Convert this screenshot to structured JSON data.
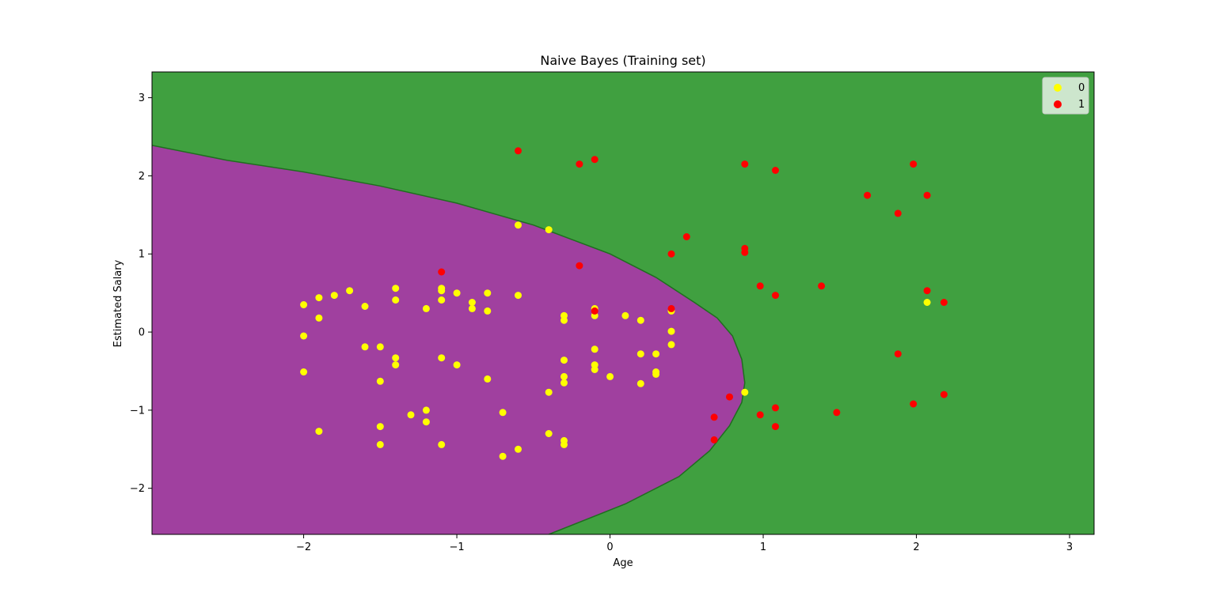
{
  "chart_data": {
    "type": "scatter",
    "title": "Naive Bayes (Training set)",
    "xlabel": "Age",
    "ylabel": "Estimated Salary",
    "xlim": [
      -2.99,
      3.16
    ],
    "ylim": [
      -2.59,
      3.33
    ],
    "xticks": [
      -2,
      -1,
      0,
      1,
      2,
      3
    ],
    "yticks": [
      -2,
      -1,
      0,
      1,
      2,
      3
    ],
    "xtick_labels": [
      "−2",
      "−1",
      "0",
      "1",
      "2",
      "3"
    ],
    "ytick_labels": [
      "−2",
      "−1",
      "0",
      "1",
      "2",
      "3"
    ],
    "legend_position": "top-right",
    "grid": false,
    "background_regions": [
      {
        "name": "0",
        "color": "#a0409f"
      },
      {
        "name": "1",
        "color": "#40a040"
      }
    ],
    "decision_boundary": [
      [
        -2.99,
        2.39
      ],
      [
        -2.5,
        2.2
      ],
      [
        -2.0,
        2.05
      ],
      [
        -1.5,
        1.87
      ],
      [
        -1.0,
        1.65
      ],
      [
        -0.5,
        1.37
      ],
      [
        0.0,
        1.0
      ],
      [
        0.3,
        0.7
      ],
      [
        0.55,
        0.38
      ],
      [
        0.7,
        0.18
      ],
      [
        0.8,
        -0.05
      ],
      [
        0.86,
        -0.35
      ],
      [
        0.88,
        -0.65
      ],
      [
        0.86,
        -0.9
      ],
      [
        0.78,
        -1.2
      ],
      [
        0.65,
        -1.52
      ],
      [
        0.45,
        -1.85
      ],
      [
        0.1,
        -2.2
      ],
      [
        -0.4,
        -2.59
      ]
    ],
    "series": [
      {
        "name": "0",
        "color": "#ffff00",
        "points": [
          [
            -2.0,
            0.35
          ],
          [
            -1.9,
            0.44
          ],
          [
            -1.8,
            0.47
          ],
          [
            -1.7,
            0.53
          ],
          [
            -1.9,
            0.18
          ],
          [
            -2.0,
            -0.05
          ],
          [
            -1.6,
            0.33
          ],
          [
            -1.6,
            -0.19
          ],
          [
            -1.5,
            -0.19
          ],
          [
            -1.4,
            0.56
          ],
          [
            -1.4,
            0.41
          ],
          [
            -1.4,
            -0.33
          ],
          [
            -1.4,
            -0.42
          ],
          [
            -1.2,
            0.3
          ],
          [
            -1.1,
            0.56
          ],
          [
            -1.1,
            0.53
          ],
          [
            -1.1,
            0.41
          ],
          [
            -1.0,
            0.5
          ],
          [
            -0.9,
            0.38
          ],
          [
            -0.9,
            0.3
          ],
          [
            -0.8,
            0.5
          ],
          [
            -0.8,
            0.27
          ],
          [
            -0.6,
            0.47
          ],
          [
            -2.0,
            -0.51
          ],
          [
            -1.5,
            -0.63
          ],
          [
            -1.1,
            -0.33
          ],
          [
            -1.0,
            -0.42
          ],
          [
            -0.8,
            -0.6
          ],
          [
            -1.3,
            -1.06
          ],
          [
            -1.2,
            -1.0
          ],
          [
            -1.2,
            -1.15
          ],
          [
            -1.5,
            -1.21
          ],
          [
            -1.9,
            -1.27
          ],
          [
            -1.5,
            -1.44
          ],
          [
            -1.1,
            -1.44
          ],
          [
            -0.7,
            -1.03
          ],
          [
            -0.7,
            -1.59
          ],
          [
            -0.6,
            -1.5
          ],
          [
            -0.4,
            -1.3
          ],
          [
            -0.3,
            -1.39
          ],
          [
            -0.3,
            -1.44
          ],
          [
            -0.4,
            -0.77
          ],
          [
            -0.3,
            -0.57
          ],
          [
            -0.3,
            -0.65
          ],
          [
            -0.3,
            -0.36
          ],
          [
            -0.3,
            0.21
          ],
          [
            -0.3,
            0.15
          ],
          [
            -0.1,
            0.3
          ],
          [
            -0.1,
            0.21
          ],
          [
            -0.1,
            -0.22
          ],
          [
            -0.1,
            -0.42
          ],
          [
            -0.1,
            -0.48
          ],
          [
            0.0,
            -0.57
          ],
          [
            0.1,
            0.21
          ],
          [
            0.2,
            0.15
          ],
          [
            0.2,
            -0.28
          ],
          [
            0.2,
            -0.66
          ],
          [
            0.3,
            -0.28
          ],
          [
            0.3,
            -0.51
          ],
          [
            0.3,
            -0.54
          ],
          [
            0.4,
            0.01
          ],
          [
            0.4,
            -0.16
          ],
          [
            0.4,
            0.27
          ],
          [
            -0.6,
            1.37
          ],
          [
            -0.4,
            1.31
          ],
          [
            0.88,
            -0.77
          ],
          [
            2.07,
            0.38
          ]
        ]
      },
      {
        "name": "1",
        "color": "#ff0000",
        "points": [
          [
            -0.6,
            2.32
          ],
          [
            -0.2,
            2.15
          ],
          [
            -0.1,
            2.21
          ],
          [
            0.88,
            2.15
          ],
          [
            1.08,
            2.07
          ],
          [
            1.98,
            2.15
          ],
          [
            1.68,
            1.75
          ],
          [
            2.07,
            1.75
          ],
          [
            1.88,
            1.52
          ],
          [
            0.5,
            1.22
          ],
          [
            0.4,
            1.0
          ],
          [
            0.88,
            1.07
          ],
          [
            0.88,
            1.02
          ],
          [
            -1.1,
            0.77
          ],
          [
            -0.2,
            0.85
          ],
          [
            0.98,
            0.59
          ],
          [
            1.38,
            0.59
          ],
          [
            1.08,
            0.47
          ],
          [
            2.07,
            0.53
          ],
          [
            2.18,
            0.38
          ],
          [
            -0.1,
            0.27
          ],
          [
            0.4,
            0.3
          ],
          [
            1.88,
            -0.28
          ],
          [
            0.78,
            -0.83
          ],
          [
            2.18,
            -0.8
          ],
          [
            1.98,
            -0.92
          ],
          [
            1.08,
            -0.97
          ],
          [
            0.98,
            -1.06
          ],
          [
            1.48,
            -1.03
          ],
          [
            0.68,
            -1.09
          ],
          [
            1.08,
            -1.21
          ],
          [
            0.68,
            -1.38
          ]
        ]
      }
    ]
  }
}
